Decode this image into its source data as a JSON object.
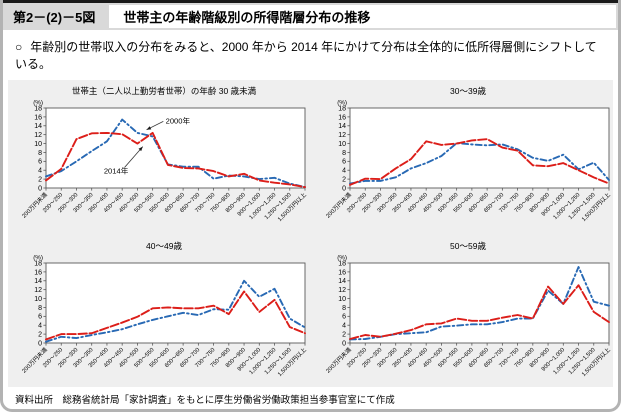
{
  "page": {
    "figure_label": "第2－(2)－5図",
    "title": "世帯主の年齢階級別の所得階層分布の推移",
    "bullet_marker": "○",
    "bullet": "年齢別の世帯収入の分布をみると、2000 年から 2014 年にかけて分布は全体的に低所得層側にシフトしている。",
    "source": "資料出所　総務省統計局「家計調査」をもとに厚生労働省労働政策担当参事官室にて作成"
  },
  "colors": {
    "series_2000": "#2869B4",
    "series_2014": "#DC1E19",
    "header_bg": "#d9d9d9",
    "panel_bg": "#efefef",
    "axis": "#595959"
  },
  "chart_data": [
    {
      "type": "line",
      "title": "世帯主（二人以上勤労者世帯）の年齢 30 歳未満",
      "ylabel": "(%)",
      "ylim": [
        0,
        18
      ],
      "ytick_step": 2,
      "legend_position": "annotated-callouts",
      "grid": false,
      "categories": [
        "200万円未満",
        "200～250",
        "250～300",
        "300～350",
        "350～400",
        "400～450",
        "450～500",
        "500～550",
        "550～600",
        "600～650",
        "650～700",
        "700～750",
        "750～800",
        "800～900",
        "900～1,000",
        "1,000～1,250",
        "1,250～1,500",
        "1,500万円以上"
      ],
      "series": [
        {
          "name": "2000年",
          "dash": "dashdot",
          "values": [
            2.6,
            3.8,
            6.0,
            8.3,
            10.5,
            15.4,
            12.4,
            11.6,
            5.3,
            4.8,
            4.8,
            2.1,
            2.8,
            2.6,
            2.0,
            2.3,
            1.0,
            0.2
          ]
        },
        {
          "name": "2014年",
          "dash": "longdash",
          "values": [
            1.7,
            4.3,
            11.0,
            12.3,
            12.4,
            12.1,
            10.0,
            12.4,
            5.2,
            4.5,
            4.4,
            3.8,
            2.6,
            3.2,
            1.7,
            1.2,
            0.8,
            0.2
          ]
        }
      ]
    },
    {
      "type": "line",
      "title": "30～39歳",
      "ylabel": "(%)",
      "ylim": [
        0,
        18
      ],
      "ytick_step": 2,
      "legend_position": "none",
      "grid": false,
      "categories": [
        "200万円未満",
        "200～250",
        "250～300",
        "300～350",
        "350～400",
        "400～450",
        "450～500",
        "500～550",
        "550～600",
        "600～650",
        "650～700",
        "700～750",
        "750～800",
        "800～900",
        "900～1,000",
        "1,000～1,250",
        "1,250～1,500",
        "1,500万円以上"
      ],
      "series": [
        {
          "name": "2000年",
          "dash": "dashdot",
          "values": [
            1.0,
            1.6,
            1.6,
            2.4,
            4.4,
            5.6,
            7.2,
            10.1,
            9.8,
            9.6,
            9.8,
            8.7,
            6.8,
            6.1,
            7.5,
            4.2,
            5.7,
            1.8
          ]
        },
        {
          "name": "2014年",
          "dash": "longdash",
          "values": [
            0.7,
            2.1,
            2.0,
            4.4,
            6.5,
            10.5,
            9.7,
            10.0,
            10.7,
            11.0,
            9.1,
            8.4,
            5.1,
            4.9,
            5.6,
            4.0,
            2.4,
            1.0
          ]
        }
      ]
    },
    {
      "type": "line",
      "title": "40～49歳",
      "ylabel": "(%)",
      "ylim": [
        0,
        18
      ],
      "ytick_step": 2,
      "legend_position": "none",
      "grid": false,
      "categories": [
        "200万円未満",
        "200～250",
        "250～300",
        "300～350",
        "350～400",
        "400～450",
        "450～500",
        "500～550",
        "550～600",
        "600～650",
        "650～700",
        "700～750",
        "750～800",
        "800～900",
        "900～1,000",
        "1,000～1,250",
        "1,250～1,500",
        "1,500万円以上"
      ],
      "series": [
        {
          "name": "2000年",
          "dash": "dashdot",
          "values": [
            0.3,
            1.4,
            1.1,
            1.8,
            2.4,
            3.1,
            4.2,
            5.2,
            6.0,
            6.8,
            6.3,
            7.6,
            7.5,
            14.0,
            10.4,
            12.2,
            5.5,
            3.5
          ]
        },
        {
          "name": "2014年",
          "dash": "longdash",
          "values": [
            0.8,
            2.0,
            2.0,
            2.2,
            3.4,
            4.6,
            5.9,
            7.8,
            8.0,
            7.8,
            7.8,
            8.4,
            6.5,
            11.6,
            7.0,
            9.7,
            3.6,
            2.2
          ]
        }
      ]
    },
    {
      "type": "line",
      "title": "50～59歳",
      "ylabel": "(%)",
      "ylim": [
        0,
        18
      ],
      "ytick_step": 2,
      "legend_position": "none",
      "grid": false,
      "categories": [
        "200万円未満",
        "200～250",
        "250～300",
        "300～350",
        "350～400",
        "400～450",
        "450～500",
        "500～550",
        "550～600",
        "600～650",
        "650～700",
        "700～750",
        "750～800",
        "800～900",
        "900～1,000",
        "1,000～1,250",
        "1,250～1,500",
        "1,500万円以上"
      ],
      "series": [
        {
          "name": "2000年",
          "dash": "dashdot",
          "values": [
            0.8,
            0.9,
            1.4,
            2.0,
            2.2,
            2.4,
            3.7,
            3.9,
            4.2,
            4.2,
            4.7,
            5.5,
            5.5,
            11.8,
            8.8,
            17.1,
            9.3,
            8.4
          ]
        },
        {
          "name": "2014年",
          "dash": "longdash",
          "values": [
            0.9,
            1.8,
            1.4,
            2.1,
            2.9,
            4.2,
            4.4,
            5.5,
            5.0,
            5.0,
            5.7,
            6.3,
            5.5,
            12.7,
            8.8,
            13.0,
            7.0,
            4.7
          ]
        }
      ]
    }
  ]
}
